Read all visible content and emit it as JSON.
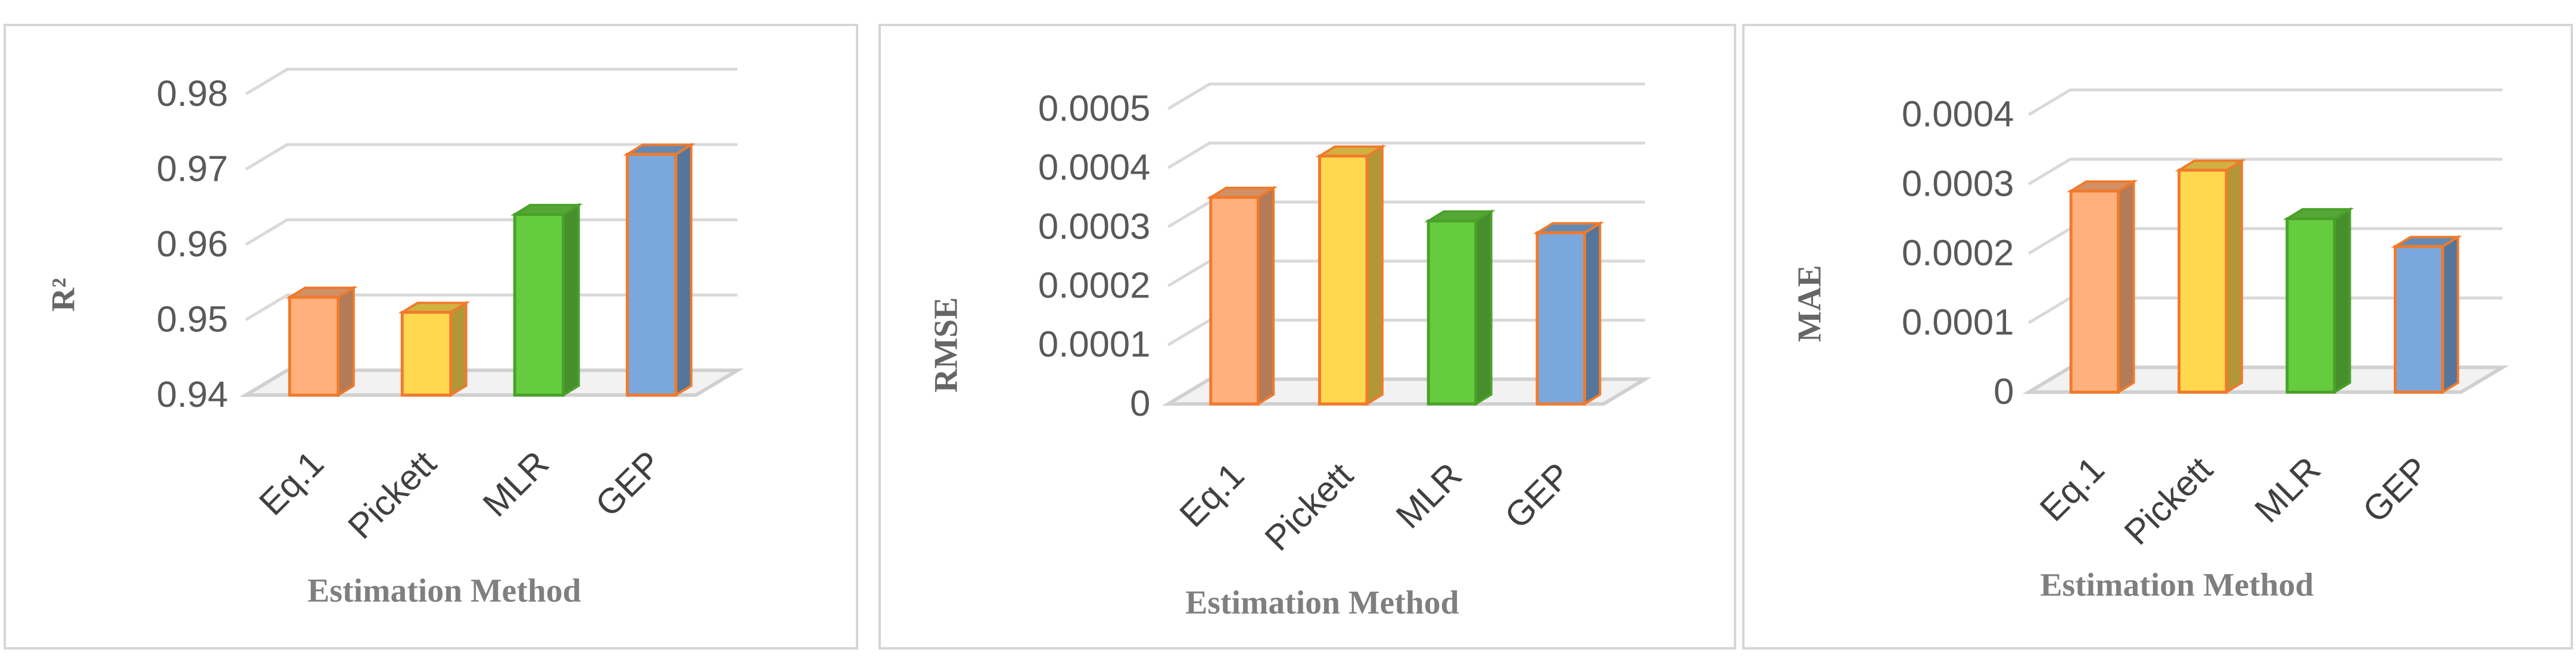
{
  "chart_data": [
    {
      "type": "bar",
      "categories": [
        "Eq.1",
        "Pickett",
        "MLR",
        "GEP"
      ],
      "values": [
        0.953,
        0.951,
        0.964,
        0.972
      ],
      "ylabel": "R²",
      "xlabel": "Estimation Method",
      "ylim": [
        0.94,
        0.98
      ],
      "yticks": [
        "0.94",
        "0.95",
        "0.96",
        "0.97",
        "0.98"
      ],
      "grid": true
    },
    {
      "type": "bar",
      "categories": [
        "Eq.1",
        "Pickett",
        "MLR",
        "GEP"
      ],
      "values": [
        0.00035,
        0.00042,
        0.00031,
        0.00029
      ],
      "ylabel": "RMSE",
      "xlabel": "Estimation Method",
      "ylim": [
        0,
        0.0005
      ],
      "yticks": [
        "0",
        "0.0001",
        "0.0002",
        "0.0003",
        "0.0004",
        "0.0005"
      ],
      "grid": true
    },
    {
      "type": "bar",
      "categories": [
        "Eq.1",
        "Pickett",
        "MLR",
        "GEP"
      ],
      "values": [
        0.00029,
        0.00032,
        0.00025,
        0.00021
      ],
      "ylabel": "MAE",
      "xlabel": "Estimation Method",
      "ylim": [
        0,
        0.0004
      ],
      "yticks": [
        "0",
        "0.0001",
        "0.0002",
        "0.0003",
        "0.0004"
      ],
      "grid": true
    }
  ],
  "colors": {
    "bar_fills": [
      "#ffb07c",
      "#ffd84f",
      "#66cc3f",
      "#7aa8dc"
    ],
    "bar_edges": [
      "#f07a2c",
      "#f07a2c",
      "#4aa12a",
      "#f07a2c"
    ],
    "grid": "#d9d9d9",
    "floor": "#d0d0d0"
  }
}
